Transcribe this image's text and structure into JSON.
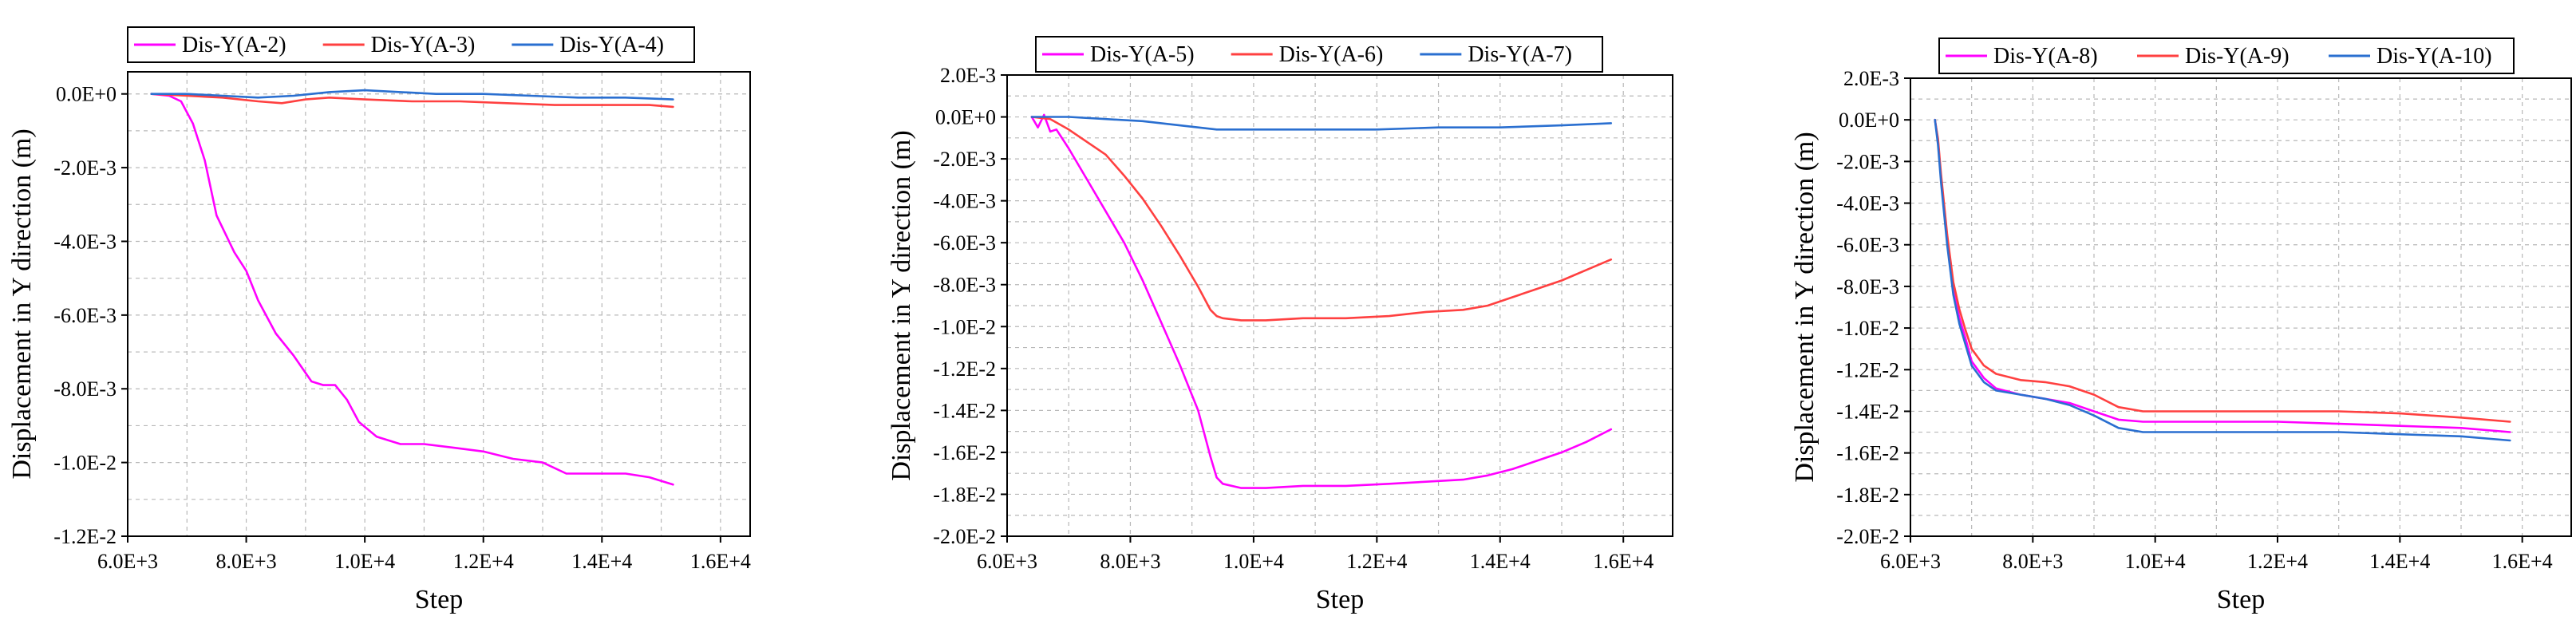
{
  "chart_data": [
    {
      "type": "line",
      "xlabel": "Step",
      "ylabel": "Displacement in Y direction (m)",
      "xlim": [
        6000,
        16500
      ],
      "ylim": [
        -0.012,
        0.0006
      ],
      "xticks": [
        6000,
        8000,
        10000,
        12000,
        14000,
        16000
      ],
      "xtick_labels": [
        "6.0E+3",
        "8.0E+3",
        "1.0E+4",
        "1.2E+4",
        "1.4E+4",
        "1.6E+4"
      ],
      "yticks": [
        0,
        -0.002,
        -0.004,
        -0.006,
        -0.008,
        -0.01,
        -0.012
      ],
      "ytick_labels": [
        "0.0E+0",
        "-2.0E-3",
        "-4.0E-3",
        "-6.0E-3",
        "-8.0E-3",
        "-1.0E-2",
        "-1.2E-2"
      ],
      "grid": true,
      "legend_position": "top",
      "series": [
        {
          "name": "Dis-Y(A-2)",
          "color": "#ff00ff",
          "x": [
            6400,
            6700,
            6900,
            7100,
            7300,
            7500,
            7800,
            8000,
            8200,
            8500,
            8800,
            9100,
            9300,
            9500,
            9700,
            9900,
            10200,
            10600,
            11000,
            11500,
            12000,
            12500,
            13000,
            13400,
            13600,
            14000,
            14400,
            14800,
            15200
          ],
          "y": [
            0.0,
            -5e-05,
            -0.0002,
            -0.0008,
            -0.0018,
            -0.0033,
            -0.0043,
            -0.0048,
            -0.0056,
            -0.0065,
            -0.0071,
            -0.0078,
            -0.0079,
            -0.0079,
            -0.0083,
            -0.0089,
            -0.0093,
            -0.0095,
            -0.0095,
            -0.0096,
            -0.0097,
            -0.0099,
            -0.01,
            -0.0103,
            -0.0103,
            -0.0103,
            -0.0103,
            -0.0104,
            -0.0106
          ]
        },
        {
          "name": "Dis-Y(A-3)",
          "color": "#ff4040",
          "x": [
            6400,
            7000,
            7600,
            8200,
            8600,
            9000,
            9400,
            10000,
            10800,
            11600,
            12400,
            13200,
            14000,
            14800,
            15200
          ],
          "y": [
            0.0,
            -5e-05,
            -0.0001,
            -0.0002,
            -0.00025,
            -0.00015,
            -0.0001,
            -0.00015,
            -0.0002,
            -0.0002,
            -0.00025,
            -0.0003,
            -0.0003,
            -0.0003,
            -0.00035
          ]
        },
        {
          "name": "Dis-Y(A-4)",
          "color": "#2a6fd0",
          "x": [
            6400,
            7000,
            7600,
            8200,
            8800,
            9400,
            10000,
            10600,
            11200,
            12000,
            12800,
            13600,
            14400,
            15200
          ],
          "y": [
            0.0,
            0.0,
            -5e-05,
            -0.0001,
            -5e-05,
            5e-05,
            0.0001,
            5e-05,
            0.0,
            0.0,
            -5e-05,
            -0.0001,
            -0.0001,
            -0.00015
          ]
        }
      ]
    },
    {
      "type": "line",
      "xlabel": "Step",
      "ylabel": "Displacement in Y direction (m)",
      "xlim": [
        6000,
        16800
      ],
      "ylim": [
        -0.02,
        0.002
      ],
      "xticks": [
        6000,
        8000,
        10000,
        12000,
        14000,
        16000
      ],
      "xtick_labels": [
        "6.0E+3",
        "8.0E+3",
        "1.0E+4",
        "1.2E+4",
        "1.4E+4",
        "1.6E+4"
      ],
      "yticks": [
        0.002,
        0,
        -0.002,
        -0.004,
        -0.006,
        -0.008,
        -0.01,
        -0.012,
        -0.014,
        -0.016,
        -0.018,
        -0.02
      ],
      "ytick_labels": [
        "2.0E-3",
        "0.0E+0",
        "-2.0E-3",
        "-4.0E-3",
        "-6.0E-3",
        "-8.0E-3",
        "-1.0E-2",
        "-1.2E-2",
        "-1.4E-2",
        "-1.6E-2",
        "-1.8E-2",
        "-2.0E-2"
      ],
      "grid": true,
      "legend_position": "top",
      "series": [
        {
          "name": "Dis-Y(A-5)",
          "color": "#ff00ff",
          "x": [
            6400,
            6500,
            6600,
            6700,
            6800,
            7000,
            7300,
            7600,
            7900,
            8200,
            8500,
            8800,
            9100,
            9300,
            9400,
            9500,
            9800,
            10200,
            10800,
            11500,
            12200,
            12800,
            13400,
            13800,
            14200,
            14600,
            15000,
            15400,
            15800
          ],
          "y": [
            0.0,
            -0.0005,
            0.0001,
            -0.0007,
            -0.0006,
            -0.0015,
            -0.003,
            -0.0045,
            -0.006,
            -0.0078,
            -0.0098,
            -0.0118,
            -0.014,
            -0.0162,
            -0.0172,
            -0.0175,
            -0.0177,
            -0.0177,
            -0.0176,
            -0.0176,
            -0.0175,
            -0.0174,
            -0.0173,
            -0.0171,
            -0.0168,
            -0.0164,
            -0.016,
            -0.0155,
            -0.0149
          ]
        },
        {
          "name": "Dis-Y(A-6)",
          "color": "#ff4040",
          "x": [
            6400,
            6700,
            7000,
            7300,
            7600,
            7900,
            8200,
            8500,
            8800,
            9100,
            9300,
            9400,
            9500,
            9800,
            10200,
            10800,
            11500,
            12200,
            12800,
            13400,
            13800,
            14200,
            14600,
            15000,
            15400,
            15800
          ],
          "y": [
            0.0,
            -0.0001,
            -0.0006,
            -0.0012,
            -0.0018,
            -0.0028,
            -0.0039,
            -0.0052,
            -0.0066,
            -0.0081,
            -0.0092,
            -0.0095,
            -0.0096,
            -0.0097,
            -0.0097,
            -0.0096,
            -0.0096,
            -0.0095,
            -0.0093,
            -0.0092,
            -0.009,
            -0.0086,
            -0.0082,
            -0.0078,
            -0.0073,
            -0.0068
          ]
        },
        {
          "name": "Dis-Y(A-7)",
          "color": "#2a6fd0",
          "x": [
            6400,
            7000,
            7600,
            8200,
            8800,
            9400,
            10000,
            11000,
            12000,
            13000,
            14000,
            15000,
            15800
          ],
          "y": [
            0.0,
            0.0,
            -0.0001,
            -0.0002,
            -0.0004,
            -0.0006,
            -0.0006,
            -0.0006,
            -0.0006,
            -0.0005,
            -0.0005,
            -0.0004,
            -0.0003
          ]
        }
      ]
    },
    {
      "type": "line",
      "xlabel": "Step",
      "ylabel": "Displacement in Y direction (m)",
      "xlim": [
        6000,
        16800
      ],
      "ylim": [
        -0.02,
        0.002
      ],
      "xticks": [
        6000,
        8000,
        10000,
        12000,
        14000,
        16000
      ],
      "xtick_labels": [
        "6.0E+3",
        "8.0E+3",
        "1.0E+4",
        "1.2E+4",
        "1.4E+4",
        "1.6E+4"
      ],
      "yticks": [
        0.002,
        0,
        -0.002,
        -0.004,
        -0.006,
        -0.008,
        -0.01,
        -0.012,
        -0.014,
        -0.016,
        -0.018,
        -0.02
      ],
      "ytick_labels": [
        "2.0E-3",
        "0.0E+0",
        "-2.0E-3",
        "-4.0E-3",
        "-6.0E-3",
        "-8.0E-3",
        "-1.0E-2",
        "-1.2E-2",
        "-1.4E-2",
        "-1.6E-2",
        "-1.8E-2",
        "-2.0E-2"
      ],
      "grid": true,
      "legend_position": "top",
      "series": [
        {
          "name": "Dis-Y(A-8)",
          "color": "#ff00ff",
          "x": [
            6400,
            6450,
            6500,
            6600,
            6700,
            6800,
            6900,
            7000,
            7200,
            7400,
            7800,
            8200,
            8600,
            9000,
            9400,
            9800,
            10400,
            11200,
            12000,
            13000,
            14000,
            15000,
            15800
          ],
          "y": [
            0.0,
            -0.001,
            -0.0028,
            -0.0058,
            -0.0082,
            -0.0095,
            -0.0105,
            -0.0116,
            -0.0124,
            -0.0129,
            -0.0132,
            -0.0134,
            -0.0136,
            -0.014,
            -0.0144,
            -0.0145,
            -0.0145,
            -0.0145,
            -0.0145,
            -0.0146,
            -0.0147,
            -0.0148,
            -0.015
          ]
        },
        {
          "name": "Dis-Y(A-9)",
          "color": "#ff4040",
          "x": [
            6400,
            6450,
            6500,
            6600,
            6700,
            6800,
            6900,
            7000,
            7200,
            7400,
            7800,
            8200,
            8600,
            9000,
            9400,
            9800,
            10400,
            11200,
            12000,
            13000,
            14000,
            15000,
            15800
          ],
          "y": [
            0.0,
            -0.0009,
            -0.0026,
            -0.0055,
            -0.0078,
            -0.0091,
            -0.0101,
            -0.011,
            -0.0118,
            -0.0122,
            -0.0125,
            -0.0126,
            -0.0128,
            -0.0132,
            -0.0138,
            -0.014,
            -0.014,
            -0.014,
            -0.014,
            -0.014,
            -0.0141,
            -0.0143,
            -0.0145
          ]
        },
        {
          "name": "Dis-Y(A-10)",
          "color": "#2a6fd0",
          "x": [
            6400,
            6450,
            6500,
            6600,
            6700,
            6800,
            6900,
            7000,
            7200,
            7400,
            7800,
            8200,
            8600,
            9000,
            9400,
            9800,
            10400,
            11200,
            12000,
            13000,
            14000,
            15000,
            15800
          ],
          "y": [
            0.0,
            -0.0012,
            -0.003,
            -0.006,
            -0.0084,
            -0.0098,
            -0.0108,
            -0.0118,
            -0.0126,
            -0.013,
            -0.0132,
            -0.0134,
            -0.0137,
            -0.0142,
            -0.0148,
            -0.015,
            -0.015,
            -0.015,
            -0.015,
            -0.015,
            -0.0151,
            -0.0152,
            -0.0154
          ]
        }
      ]
    }
  ]
}
